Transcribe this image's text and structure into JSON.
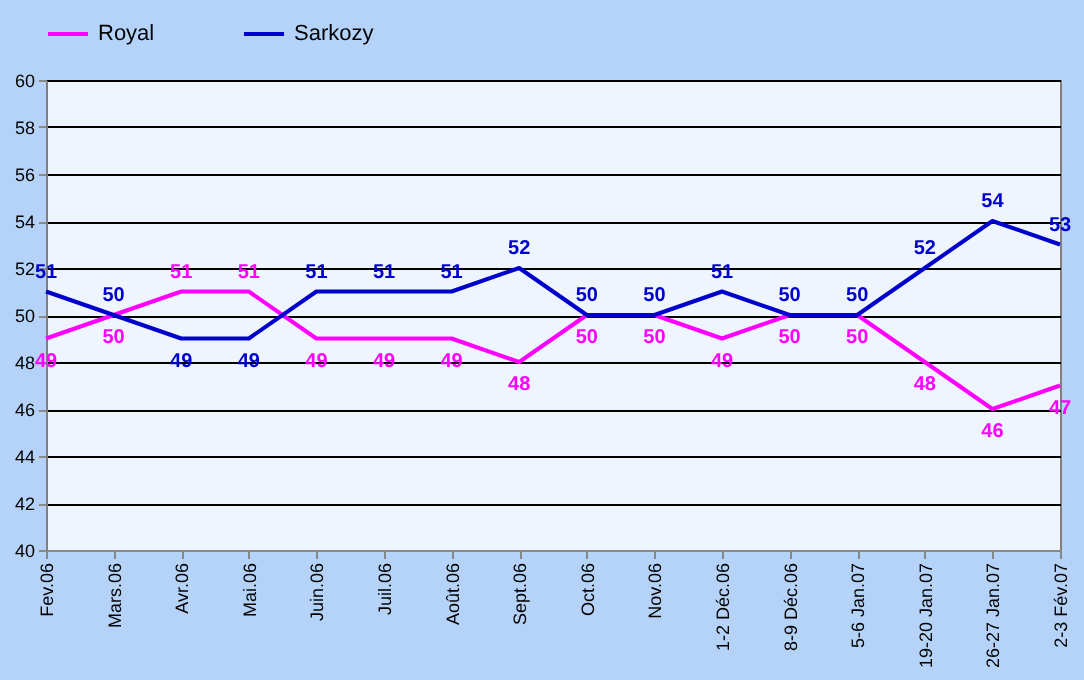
{
  "chart_data": {
    "type": "line",
    "categories": [
      "Fev.06",
      "Mars.06",
      "Avr.06",
      "Mai.06",
      "Juin.06",
      "Juil.06",
      "Août.06",
      "Sept.06",
      "Oct.06",
      "Nov.06",
      "1-2 Déc.06",
      "8-9 Déc.06",
      "5-6 Jan.07",
      "19-20 Jan.07",
      "26-27 Jan.07",
      "2-3 Fév.07"
    ],
    "series": [
      {
        "name": "Royal",
        "color": "#ff00ff",
        "values": [
          49,
          50,
          51,
          51,
          49,
          49,
          49,
          48,
          50,
          50,
          49,
          50,
          50,
          48,
          46,
          47
        ]
      },
      {
        "name": "Sarkozy",
        "color": "#0000cc",
        "values": [
          51,
          50,
          49,
          49,
          51,
          51,
          51,
          52,
          50,
          50,
          51,
          50,
          50,
          52,
          54,
          53
        ]
      }
    ],
    "ylim": [
      40,
      60
    ],
    "yticks": [
      40,
      42,
      44,
      46,
      48,
      50,
      52,
      54,
      56,
      58,
      60
    ],
    "grid": "y",
    "legend": "top left",
    "data_labels": true,
    "marker": "none",
    "line_style": "solid"
  }
}
